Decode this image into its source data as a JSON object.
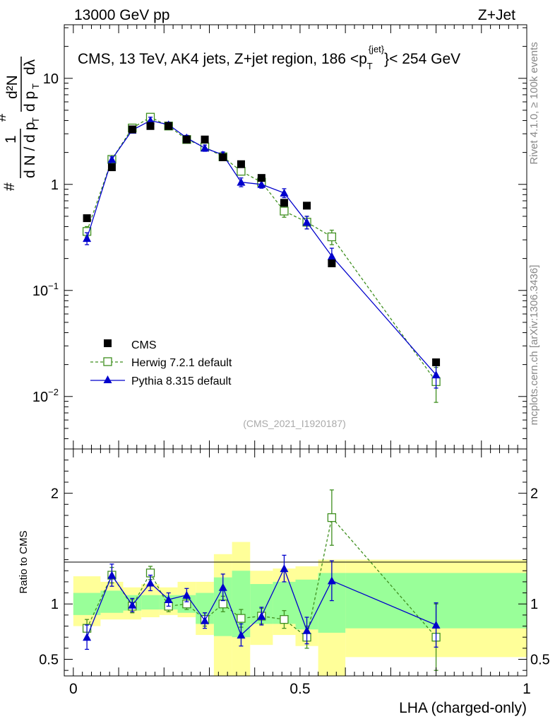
{
  "header": {
    "left": "13000 GeV pp",
    "right": "Z+Jet"
  },
  "side": {
    "rivet": "Rivet 4.1.0, ≥ 100k events",
    "mcplots": "mcplots.cern.ch [arXiv:1306.3436]"
  },
  "chart_data": {
    "type": "scatter",
    "title_pre": "CMS, 13 TeV, AK4 jets, Z+jet region, 186 <p",
    "title_sub": "T",
    "title_sup": "{jet}",
    "title_post": "}< 254 GeV",
    "analysis_id": "(CMS_2021_I1920187)",
    "xlabel": "LHA (charged-only)",
    "ylabel_main": {
      "hash1": "#",
      "one": "1",
      "dN": "d N / d p",
      "T": "T",
      "hash2": "#",
      "d2N": "d²N",
      "dpT": "d p",
      "dlambda": "dλ"
    },
    "ylabel_ratio": "Ratio to CMS",
    "xlim": [
      -0.02,
      1.0
    ],
    "ylim_main": [
      0.0032,
      32
    ],
    "ylim_ratio": [
      0.35,
      2.4
    ],
    "x_ticks": [
      {
        "v": 0,
        "label": "0"
      },
      {
        "v": 0.5,
        "label": "0.5"
      },
      {
        "v": 1,
        "label": "1"
      }
    ],
    "y_ticks_main": [
      {
        "v": 0.01,
        "base": "10",
        "exp": "−2"
      },
      {
        "v": 0.1,
        "base": "10",
        "exp": "−1"
      },
      {
        "v": 1,
        "base": "1",
        "exp": ""
      },
      {
        "v": 10,
        "base": "10",
        "exp": ""
      }
    ],
    "y_ticks_ratio": [
      {
        "v": 0.5,
        "label": "0.5"
      },
      {
        "v": 1,
        "label": "1"
      },
      {
        "v": 2,
        "label": "2"
      }
    ],
    "series": [
      {
        "name": "CMS",
        "color": "#000000",
        "x": [
          0.03,
          0.085,
          0.13,
          0.17,
          0.21,
          0.25,
          0.29,
          0.33,
          0.37,
          0.415,
          0.465,
          0.515,
          0.57,
          0.8
        ],
        "y": [
          0.48,
          1.45,
          3.3,
          3.55,
          3.55,
          2.65,
          2.65,
          1.8,
          1.55,
          1.15,
          0.67,
          0.63,
          0.18,
          0.021
        ]
      },
      {
        "name": "Herwig 7.2.1 default",
        "color": "#3f8f1f",
        "x": [
          0.03,
          0.085,
          0.13,
          0.17,
          0.21,
          0.25,
          0.29,
          0.33,
          0.37,
          0.415,
          0.465,
          0.515,
          0.57,
          0.8
        ],
        "y": [
          0.36,
          1.72,
          3.4,
          4.3,
          3.55,
          2.65,
          2.25,
          1.82,
          1.33,
          1.05,
          0.56,
          0.44,
          0.32,
          0.0138
        ],
        "err": [
          0.04,
          0.1,
          0.2,
          0.3,
          0.2,
          0.15,
          0.15,
          0.12,
          0.1,
          0.08,
          0.07,
          0.06,
          0.05,
          0.005
        ]
      },
      {
        "name": "Pythia 8.315 default",
        "color": "#0000cc",
        "x": [
          0.03,
          0.085,
          0.13,
          0.17,
          0.21,
          0.25,
          0.29,
          0.33,
          0.37,
          0.415,
          0.465,
          0.515,
          0.57,
          0.8
        ],
        "y": [
          0.31,
          1.72,
          3.25,
          4.0,
          3.65,
          2.75,
          2.2,
          1.9,
          1.05,
          1.0,
          0.83,
          0.44,
          0.21,
          0.016
        ],
        "err": [
          0.04,
          0.1,
          0.2,
          0.3,
          0.2,
          0.15,
          0.15,
          0.12,
          0.1,
          0.08,
          0.08,
          0.06,
          0.04,
          0.004
        ]
      }
    ],
    "ratio": {
      "herwig": {
        "y": [
          0.78,
          1.26,
          0.98,
          1.28,
          0.98,
          1.0,
          0.86,
          1.0,
          0.87,
          0.89,
          0.86,
          0.7,
          1.78,
          0.7
        ],
        "err": [
          0.08,
          0.07,
          0.06,
          0.06,
          0.05,
          0.05,
          0.06,
          0.07,
          0.08,
          0.07,
          0.08,
          0.1,
          0.25,
          0.3
        ]
      },
      "pythia": {
        "y": [
          0.7,
          1.26,
          0.99,
          1.19,
          1.04,
          1.08,
          0.85,
          1.15,
          0.72,
          0.89,
          1.32,
          0.76,
          1.21,
          0.81
        ],
        "err": [
          0.11,
          0.1,
          0.06,
          0.07,
          0.06,
          0.06,
          0.07,
          0.12,
          0.1,
          0.08,
          0.12,
          0.12,
          0.18,
          0.2
        ]
      },
      "stat_bands": [
        {
          "x0": 0.0,
          "x1": 0.06,
          "lo": 0.9,
          "hi": 1.1
        },
        {
          "x0": 0.06,
          "x1": 0.11,
          "lo": 0.92,
          "hi": 1.12
        },
        {
          "x0": 0.11,
          "x1": 0.15,
          "lo": 0.94,
          "hi": 1.08
        },
        {
          "x0": 0.15,
          "x1": 0.19,
          "lo": 0.95,
          "hi": 1.08
        },
        {
          "x0": 0.19,
          "x1": 0.23,
          "lo": 0.95,
          "hi": 1.08
        },
        {
          "x0": 0.23,
          "x1": 0.27,
          "lo": 0.92,
          "hi": 1.08
        },
        {
          "x0": 0.27,
          "x1": 0.31,
          "lo": 0.82,
          "hi": 1.1
        },
        {
          "x0": 0.31,
          "x1": 0.35,
          "lo": 0.71,
          "hi": 1.24
        },
        {
          "x0": 0.35,
          "x1": 0.39,
          "lo": 0.7,
          "hi": 1.3
        },
        {
          "x0": 0.39,
          "x1": 0.44,
          "lo": 0.82,
          "hi": 1.18
        },
        {
          "x0": 0.44,
          "x1": 0.49,
          "lo": 0.82,
          "hi": 1.2
        },
        {
          "x0": 0.49,
          "x1": 0.54,
          "lo": 0.77,
          "hi": 1.22
        },
        {
          "x0": 0.54,
          "x1": 0.6,
          "lo": 0.74,
          "hi": 1.28
        },
        {
          "x0": 0.6,
          "x1": 1.0,
          "lo": 0.78,
          "hi": 1.28
        }
      ],
      "total_bands": [
        {
          "x0": 0.0,
          "x1": 0.06,
          "lo": 0.8,
          "hi": 1.25
        },
        {
          "x0": 0.06,
          "x1": 0.11,
          "lo": 0.86,
          "hi": 1.2
        },
        {
          "x0": 0.11,
          "x1": 0.15,
          "lo": 0.86,
          "hi": 1.15
        },
        {
          "x0": 0.15,
          "x1": 0.19,
          "lo": 0.88,
          "hi": 1.18
        },
        {
          "x0": 0.19,
          "x1": 0.23,
          "lo": 0.9,
          "hi": 1.15
        },
        {
          "x0": 0.23,
          "x1": 0.27,
          "lo": 0.88,
          "hi": 1.2
        },
        {
          "x0": 0.27,
          "x1": 0.31,
          "lo": 0.72,
          "hi": 1.2
        },
        {
          "x0": 0.31,
          "x1": 0.35,
          "lo": 0.35,
          "hi": 1.45
        },
        {
          "x0": 0.35,
          "x1": 0.39,
          "lo": 0.35,
          "hi": 1.56
        },
        {
          "x0": 0.39,
          "x1": 0.44,
          "lo": 0.63,
          "hi": 1.3
        },
        {
          "x0": 0.44,
          "x1": 0.49,
          "lo": 0.72,
          "hi": 1.32
        },
        {
          "x0": 0.49,
          "x1": 0.54,
          "lo": 0.62,
          "hi": 1.34
        },
        {
          "x0": 0.54,
          "x1": 0.6,
          "lo": 0.35,
          "hi": 1.4
        },
        {
          "x0": 0.6,
          "x1": 1.0,
          "lo": 0.52,
          "hi": 1.4
        }
      ]
    },
    "colors": {
      "stat_band": "#99ff99",
      "total_band": "#ffff99",
      "axis": "#000000",
      "muted_text": "#888888"
    }
  }
}
